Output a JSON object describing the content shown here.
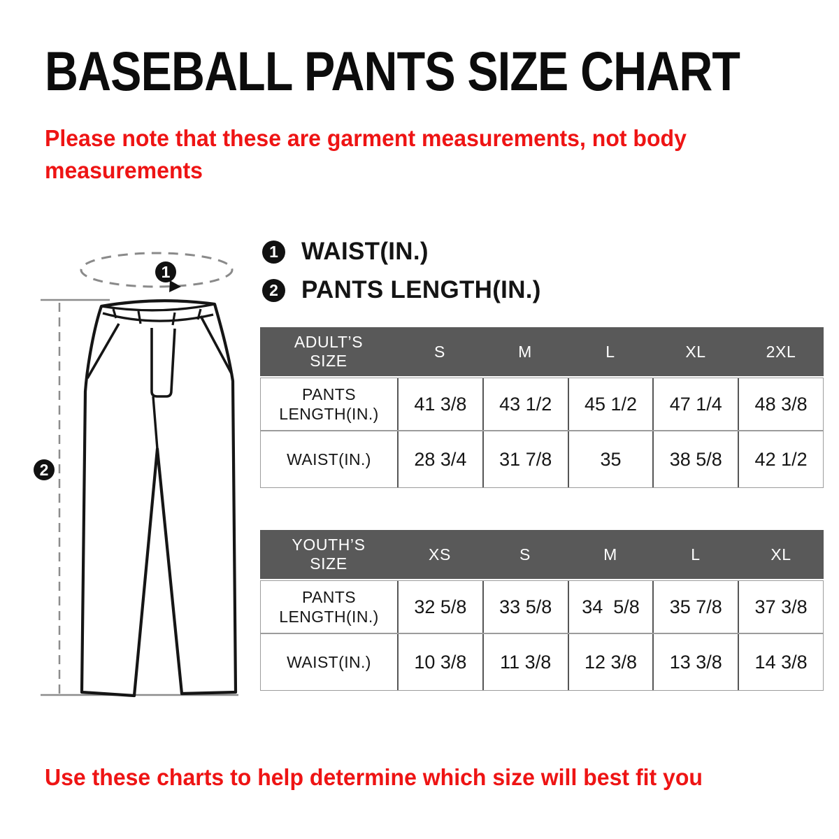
{
  "title": "BASEBALL PANTS SIZE CHART",
  "notes": {
    "top": "Please note that these are garment measurements, not body\nmeasurements",
    "bottom": "Use these charts to help determine which size will best fit you"
  },
  "colors": {
    "accent_red": "#ee1414",
    "table_header_gray": "#595959",
    "ink_black": "#111111"
  },
  "legend": {
    "items": [
      {
        "num": "1",
        "label": "WAIST(IN.)"
      },
      {
        "num": "2",
        "label": "PANTS LENGTH(IN.)"
      }
    ]
  },
  "diagram": {
    "marker1": "1",
    "marker2": "2"
  },
  "tables": {
    "adult": {
      "header": [
        "ADULT’S\nSIZE",
        "S",
        "M",
        "L",
        "XL",
        "2XL"
      ],
      "rows": [
        [
          "PANTS\nLENGTH(IN.)",
          "41 3/8",
          "43 1/2",
          "45 1/2",
          "47 1/4",
          "48 3/8"
        ],
        [
          "WAIST(IN.)",
          "28 3/4",
          "31 7/8",
          "35",
          "38 5/8",
          "42 1/2"
        ]
      ]
    },
    "youth": {
      "header": [
        "YOUTH’S\nSIZE",
        "XS",
        "S",
        "M",
        "L",
        "XL"
      ],
      "rows": [
        [
          "PANTS\nLENGTH(IN.)",
          "32 5/8",
          "33 5/8",
          "34  5/8",
          "35 7/8",
          "37 3/8"
        ],
        [
          "WAIST(IN.)",
          "10 3/8",
          "11 3/8",
          "12 3/8",
          "13 3/8",
          "14 3/8"
        ]
      ]
    }
  }
}
